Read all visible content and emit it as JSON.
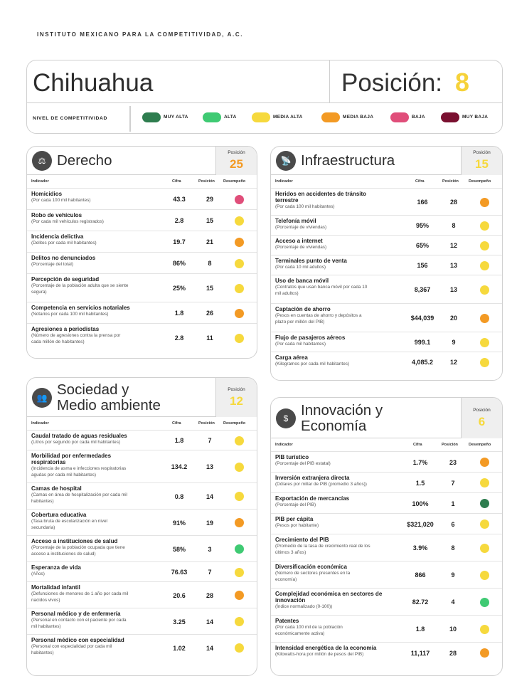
{
  "org": "INSTITUTO MEXICANO PARA LA COMPETITIVIDAD, A.C.",
  "state": "Chihuahua",
  "position_label": "Posición:",
  "position_value": "8",
  "legend": {
    "title": "NIVEL DE COMPETITIVIDAD",
    "items": [
      {
        "label": "MUY ALTA",
        "color": "#2e7d4f"
      },
      {
        "label": "ALTA",
        "color": "#3fca73"
      },
      {
        "label": "MEDIA ALTA",
        "color": "#f6d93d"
      },
      {
        "label": "MEDIA BAJA",
        "color": "#f39a24"
      },
      {
        "label": "BAJA",
        "color": "#e04e7a"
      },
      {
        "label": "MUY BAJA",
        "color": "#7a1030"
      }
    ]
  },
  "columns": {
    "indicador": "Indicador",
    "cifra": "Cifra",
    "posicion": "Posición",
    "desempeno": "Desempeño"
  },
  "pos_label": "Posición",
  "sections": {
    "derecho": {
      "title": "Derecho",
      "position": "25",
      "pos_color": "#f39a24",
      "icon": "scales-icon",
      "rows": [
        {
          "name": "Homicidios",
          "sub": [
            "(Por cada 100 mil habitantes)"
          ],
          "value": "43.3",
          "pos": "29",
          "color": "#e04e7a"
        },
        {
          "name": "Robo de vehículos",
          "sub": [
            "(Por cada mil vehículos registrados)"
          ],
          "value": "2.8",
          "pos": "15",
          "color": "#f6d93d"
        },
        {
          "name": "Incidencia delictiva",
          "sub": [
            "(Delitos por cada mil habitantes)"
          ],
          "value": "19.7",
          "pos": "21",
          "color": "#f39a24"
        },
        {
          "name": "Delitos no denunciados",
          "sub": [
            "(Porcentaje del total)"
          ],
          "value": "86%",
          "pos": "8",
          "color": "#f6d93d"
        },
        {
          "name": "Percepción de seguridad",
          "sub": [
            "(Porcentaje de la población adulta que se siente",
            "segura)"
          ],
          "value": "25%",
          "pos": "15",
          "color": "#f6d93d"
        },
        {
          "name": "Competencia en servicios notariales",
          "sub": [
            "(Notarios por cada 100 mil habitantes)"
          ],
          "value": "1.8",
          "pos": "26",
          "color": "#f39a24"
        },
        {
          "name": "Agresiones a periodistas",
          "sub": [
            "(Número de agresiones contra la prensa por",
            "cada millón de habitantes)"
          ],
          "value": "2.8",
          "pos": "11",
          "color": "#f6d93d"
        }
      ]
    },
    "infra": {
      "title": "Infraestructura",
      "position": "15",
      "pos_color": "#f6d93d",
      "icon": "antenna-icon",
      "rows": [
        {
          "name": "Heridos en accidentes de tránsito",
          "name2": "terrestre",
          "sub": [
            "(Por cada 100 mil habitantes)"
          ],
          "value": "166",
          "pos": "28",
          "color": "#f39a24"
        },
        {
          "name": "Telefonía móvil",
          "sub": [
            "(Porcentaje de viviendas)"
          ],
          "value": "95%",
          "pos": "8",
          "color": "#f6d93d"
        },
        {
          "name": "Acceso a internet",
          "sub": [
            "(Porcentaje de viviendas)"
          ],
          "value": "65%",
          "pos": "12",
          "color": "#f6d93d"
        },
        {
          "name": "Terminales punto de venta",
          "sub": [
            "(Por cada 10 mil adultos)"
          ],
          "value": "156",
          "pos": "13",
          "color": "#f6d93d"
        },
        {
          "name": "Uso de banca móvil",
          "sub": [
            "(Contratos que usan banca móvil por cada 10",
            "mil adultos)"
          ],
          "value": "8,367",
          "pos": "13",
          "color": "#f6d93d"
        },
        {
          "name": "Captación de ahorro",
          "sub": [
            "(Pesos en cuentas de ahorro y depósitos a",
            "plazo por millón del PIB)"
          ],
          "value": "$44,039",
          "pos": "20",
          "color": "#f39a24"
        },
        {
          "name": "Flujo de pasajeros aéreos",
          "sub": [
            "(Por cada mil habitantes)"
          ],
          "value": "999.1",
          "pos": "9",
          "color": "#f6d93d"
        },
        {
          "name": "Carga aérea",
          "sub": [
            "(Kilogramos por cada mil habitantes)"
          ],
          "value": "4,085.2",
          "pos": "12",
          "color": "#f6d93d"
        }
      ]
    },
    "sociedad": {
      "title1": "Sociedad y",
      "title2": "Medio ambiente",
      "position": "12",
      "pos_color": "#f6d93d",
      "icon": "people-icon",
      "rows": [
        {
          "name": "Caudal tratado de aguas residuales",
          "sub": [
            "(Litros por segundo por cada mil habitantes)"
          ],
          "value": "1.8",
          "pos": "7",
          "color": "#f6d93d"
        },
        {
          "name": "Morbilidad por enfermedades",
          "name2": "respiratorias",
          "sub": [
            "(Incidencia de asma e infecciones respiratorias",
            "agudas por cada mil habitantes)"
          ],
          "value": "134.2",
          "pos": "13",
          "color": "#f6d93d"
        },
        {
          "name": "Camas de hospital",
          "sub": [
            "(Camas en área de hospitalización por cada mil",
            "habitantes)"
          ],
          "value": "0.8",
          "pos": "14",
          "color": "#f6d93d"
        },
        {
          "name": "Cobertura educativa",
          "sub": [
            "(Tasa bruta de escolarización en nivel",
            "secundaria)"
          ],
          "value": "91%",
          "pos": "19",
          "color": "#f39a24"
        },
        {
          "name": "Acceso a instituciones de salud",
          "sub": [
            "(Porcentaje de la población ocupada que tiene",
            "acceso a instituciones de salud)"
          ],
          "value": "58%",
          "pos": "3",
          "color": "#3fca73"
        },
        {
          "name": "Esperanza de vida",
          "sub": [
            "(Años)"
          ],
          "value": "76.63",
          "pos": "7",
          "color": "#f6d93d"
        },
        {
          "name": "Mortalidad infantil",
          "sub": [
            "(Defunciones de menores de 1 año por cada mil",
            "nacidos vivos)"
          ],
          "value": "20.6",
          "pos": "28",
          "color": "#f39a24"
        },
        {
          "name": "Personal médico y de enfermería",
          "sub": [
            "(Personal en contacto con el paciente por cada",
            "mil habitantes)"
          ],
          "value": "3.25",
          "pos": "14",
          "color": "#f6d93d"
        },
        {
          "name": "Personal médico con especialidad",
          "sub": [
            "(Personal con especialidad por cada mil",
            "habitantes)"
          ],
          "value": "1.02",
          "pos": "14",
          "color": "#f6d93d"
        }
      ]
    },
    "innov": {
      "title1": "Innovación y",
      "title2": "Economía",
      "position": "6",
      "pos_color": "#f6d93d",
      "icon": "money-icon",
      "rows": [
        {
          "name": "PIB turístico",
          "sub": [
            "(Porcentaje del PIB estatal)"
          ],
          "value": "1.7%",
          "pos": "23",
          "color": "#f39a24"
        },
        {
          "name": "Inversión extranjera directa",
          "sub": [
            "(Dólares por millar de PIB (promedio 3 años))"
          ],
          "value": "1.5",
          "pos": "7",
          "color": "#f6d93d"
        },
        {
          "name": "Exportación de mercancías",
          "sub": [
            "(Porcentaje del PIB)"
          ],
          "value": "100%",
          "pos": "1",
          "color": "#2e7d4f"
        },
        {
          "name": "PIB per cápita",
          "sub": [
            "(Pesos por habitante)"
          ],
          "value": "$321,020",
          "pos": "6",
          "color": "#f6d93d"
        },
        {
          "name": "Crecimiento del PIB",
          "sub": [
            "(Promedio de la tasa de crecimiento real de los",
            "últimos 3 años)"
          ],
          "value": "3.9%",
          "pos": "8",
          "color": "#f6d93d"
        },
        {
          "name": "Diversificación económica",
          "sub": [
            "(Número de sectores presentes en la",
            "economía)"
          ],
          "value": "866",
          "pos": "9",
          "color": "#f6d93d"
        },
        {
          "name": "Complejidad económica en sectores de",
          "name2": "innovación",
          "sub": [
            "(Índice normalizado (0-100))"
          ],
          "value": "82.72",
          "pos": "4",
          "color": "#3fca73"
        },
        {
          "name": "Patentes",
          "sub": [
            "(Por cada 100 mil de la población",
            "económicamente activa)"
          ],
          "value": "1.8",
          "pos": "10",
          "color": "#f6d93d"
        },
        {
          "name": "Intensidad energética de la economía",
          "sub": [
            "(Kilowatts-hora por millón de pesos del PIB)"
          ],
          "value": "11,117",
          "pos": "28",
          "color": "#f39a24"
        }
      ]
    }
  }
}
